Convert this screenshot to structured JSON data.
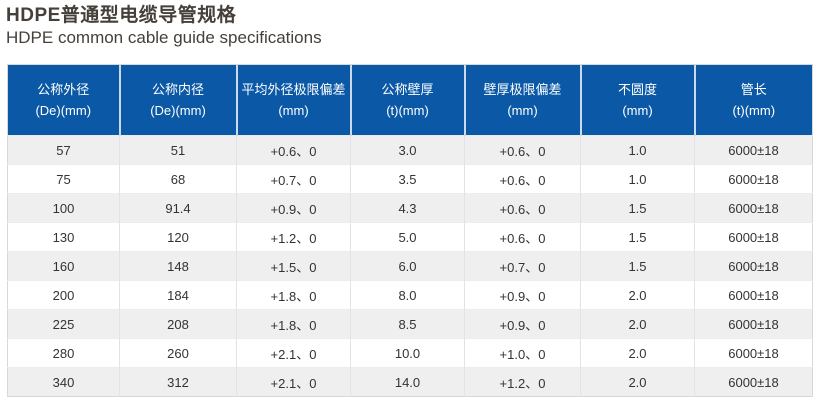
{
  "page": {
    "title_zh": "HDPE普通型电缆导管规格",
    "title_en": "HDPE common cable guide specifications"
  },
  "table": {
    "columns": [
      {
        "zh": "公称外径",
        "unit": "(De)(mm)"
      },
      {
        "zh": "公称内径",
        "unit": "(De)(mm)"
      },
      {
        "zh": "平均外径极限偏差",
        "unit": "(mm)"
      },
      {
        "zh": "公称壁厚",
        "unit": "(t)(mm)"
      },
      {
        "zh": "壁厚极限偏差",
        "unit": "(mm)"
      },
      {
        "zh": "不圆度",
        "unit": "(mm)"
      },
      {
        "zh": "管长",
        "unit": "(t)(mm)"
      }
    ],
    "rows": [
      [
        "57",
        "51",
        "+0.6、0",
        "3.0",
        "+0.6、0",
        "1.0",
        "6000±18"
      ],
      [
        "75",
        "68",
        "+0.7、0",
        "3.5",
        "+0.6、0",
        "1.0",
        "6000±18"
      ],
      [
        "100",
        "91.4",
        "+0.9、0",
        "4.3",
        "+0.6、0",
        "1.5",
        "6000±18"
      ],
      [
        "130",
        "120",
        "+1.2、0",
        "5.0",
        "+0.6、0",
        "1.5",
        "6000±18"
      ],
      [
        "160",
        "148",
        "+1.5、0",
        "6.0",
        "+0.7、0",
        "1.5",
        "6000±18"
      ],
      [
        "200",
        "184",
        "+1.8、0",
        "8.0",
        "+0.9、0",
        "2.0",
        "6000±18"
      ],
      [
        "225",
        "208",
        "+1.8、0",
        "8.5",
        "+0.9、0",
        "2.0",
        "6000±18"
      ],
      [
        "280",
        "260",
        "+2.1、0",
        "10.0",
        "+1.0、0",
        "2.0",
        "6000±18"
      ],
      [
        "340",
        "312",
        "+2.1、0",
        "14.0",
        "+1.2、0",
        "2.0",
        "6000±18"
      ]
    ]
  },
  "colors": {
    "header_bg": "#0b59a6",
    "header_text": "#ffffff",
    "row_stripe": "#efeff0",
    "body_text": "#333333",
    "title_text": "#45403a",
    "grid_line": "#e3e3e4"
  }
}
